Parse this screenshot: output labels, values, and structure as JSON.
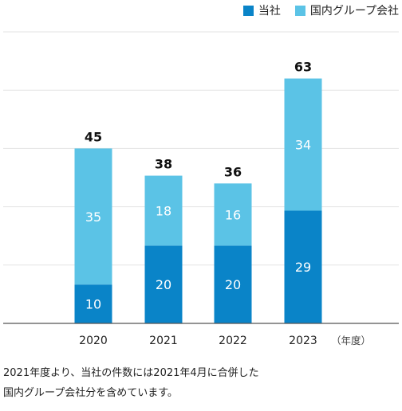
{
  "legend": {
    "company": "当社",
    "group": "国内グループ会社"
  },
  "colors": {
    "company": "#0a84c8",
    "group": "#5bc3e6"
  },
  "unit_label": "（年度）",
  "note": {
    "line1": "2021年度より、当社の件数には2021年4月に合併した",
    "line2": "国内グループ会社分を含めています。"
  },
  "chart_data": {
    "type": "bar",
    "stacked": true,
    "categories": [
      "2020",
      "2021",
      "2022",
      "2023"
    ],
    "series": [
      {
        "name": "当社",
        "values": [
          10,
          20,
          20,
          29
        ]
      },
      {
        "name": "国内グループ会社",
        "values": [
          35,
          18,
          16,
          34
        ]
      }
    ],
    "totals": [
      45,
      38,
      36,
      63
    ],
    "ylim": [
      0,
      75
    ],
    "grid": true,
    "legend_position": "top-right"
  }
}
